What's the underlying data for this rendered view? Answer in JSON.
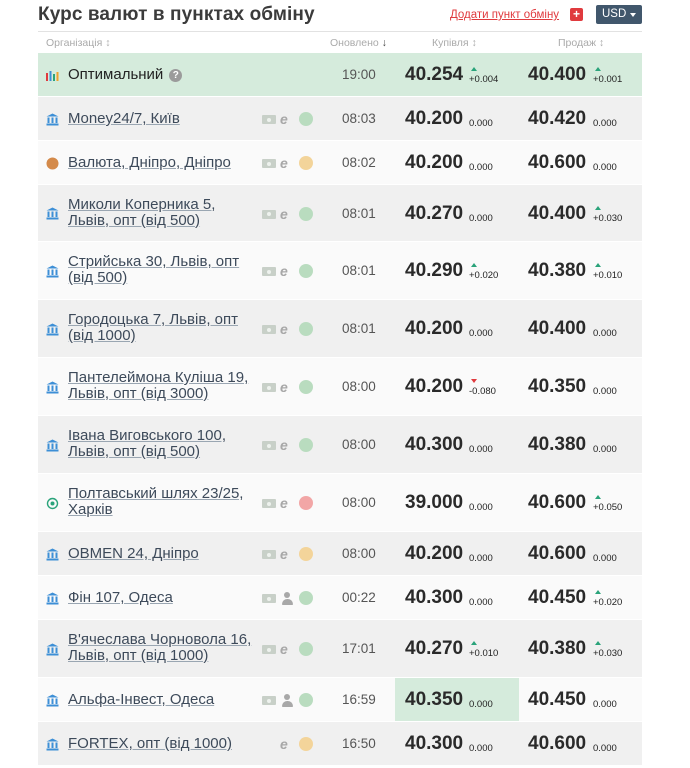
{
  "header": {
    "title": "Курс валют в пунктах обміну",
    "add_label": "Додати пункт обміну",
    "add_plus": "+",
    "currency": "USD"
  },
  "columns": {
    "org": "Організація",
    "org_arrow": "↕",
    "updated": "Оновлено",
    "updated_arrow": "↓",
    "buy": "Купівля",
    "buy_arrow": "↕",
    "sell": "Продаж",
    "sell_arrow": "↕"
  },
  "colors": {
    "status_green": "#b9dcbf",
    "status_yellow": "#f3d49a",
    "status_red": "#f2a6a6",
    "bank_icon": "#3d8fd6",
    "optimal_bg": "#d5ebdc"
  },
  "rows": [
    {
      "name": "Оптимальний",
      "icon": "chart-icon",
      "type": "optimal",
      "help": "?",
      "time": "19:00",
      "buy": "40.254",
      "buy_delta": "+0.004",
      "buy_dir": "up",
      "sell": "40.400",
      "sell_delta": "+0.001",
      "sell_dir": "up"
    },
    {
      "name": "Money24/7, Київ",
      "icon": "bank-icon",
      "cash": true,
      "feature": "card",
      "status": "green",
      "time": "08:03",
      "buy": "40.200",
      "buy_delta": "0.000",
      "buy_dir": "none",
      "sell": "40.420",
      "sell_delta": "0.000",
      "sell_dir": "none"
    },
    {
      "name": "Валюта, Дніпро, Дніпро",
      "icon": "circle-icon",
      "cash": true,
      "feature": "card",
      "status": "yellow",
      "time": "08:02",
      "buy": "40.200",
      "buy_delta": "0.000",
      "buy_dir": "none",
      "sell": "40.600",
      "sell_delta": "0.000",
      "sell_dir": "none"
    },
    {
      "name": "Миколи Коперника 5, Львів, опт (від 500)",
      "icon": "bank-icon",
      "cash": true,
      "feature": "card",
      "status": "green",
      "time": "08:01",
      "buy": "40.270",
      "buy_delta": "0.000",
      "buy_dir": "none",
      "sell": "40.400",
      "sell_delta": "+0.030",
      "sell_dir": "up"
    },
    {
      "name": "Стрийська 30, Львів, опт (від 500)",
      "icon": "bank-icon",
      "cash": true,
      "feature": "card",
      "status": "green",
      "time": "08:01",
      "buy": "40.290",
      "buy_delta": "+0.020",
      "buy_dir": "up",
      "sell": "40.380",
      "sell_delta": "+0.010",
      "sell_dir": "up"
    },
    {
      "name": "Городоцька 7, Львів, опт (від 1000)",
      "icon": "bank-icon",
      "cash": true,
      "feature": "card",
      "status": "green",
      "time": "08:01",
      "buy": "40.200",
      "buy_delta": "0.000",
      "buy_dir": "none",
      "sell": "40.400",
      "sell_delta": "0.000",
      "sell_dir": "none"
    },
    {
      "name": "Пантелеймона Куліша 19, Львів, опт (від 3000)",
      "icon": "bank-icon",
      "cash": true,
      "feature": "card",
      "status": "green",
      "time": "08:00",
      "buy": "40.200",
      "buy_delta": "-0.080",
      "buy_dir": "down",
      "sell": "40.350",
      "sell_delta": "0.000",
      "sell_dir": "none"
    },
    {
      "name": "Івана Виговського 100, Львів, опт (від 500)",
      "icon": "bank-icon",
      "cash": true,
      "feature": "card",
      "status": "green",
      "time": "08:00",
      "buy": "40.300",
      "buy_delta": "0.000",
      "buy_dir": "none",
      "sell": "40.380",
      "sell_delta": "0.000",
      "sell_dir": "none"
    },
    {
      "name": "Полтавський шлях 23/25, Харків",
      "icon": "ring-icon",
      "cash": true,
      "feature": "card",
      "status": "red",
      "time": "08:00",
      "buy": "39.000",
      "buy_delta": "0.000",
      "buy_dir": "none",
      "sell": "40.600",
      "sell_delta": "+0.050",
      "sell_dir": "up"
    },
    {
      "name": "OBMEN 24, Дніпро",
      "icon": "bank-icon",
      "cash": true,
      "feature": "card",
      "status": "yellow",
      "time": "08:00",
      "buy": "40.200",
      "buy_delta": "0.000",
      "buy_dir": "none",
      "sell": "40.600",
      "sell_delta": "0.000",
      "sell_dir": "none"
    },
    {
      "name": "Фін 107, Одеса",
      "icon": "bank-icon",
      "cash": true,
      "feature": "person",
      "status": "green",
      "time": "00:22",
      "buy": "40.300",
      "buy_delta": "0.000",
      "buy_dir": "none",
      "sell": "40.450",
      "sell_delta": "+0.020",
      "sell_dir": "up"
    },
    {
      "name": "В'ячеслава Чорновола 16, Львів, опт (від 1000)",
      "icon": "bank-icon",
      "cash": true,
      "feature": "card",
      "status": "green",
      "time": "17:01",
      "buy": "40.270",
      "buy_delta": "+0.010",
      "buy_dir": "up",
      "sell": "40.380",
      "sell_delta": "+0.030",
      "sell_dir": "up"
    },
    {
      "name": "Альфа-Інвест, Одеса",
      "icon": "bank-icon",
      "cash": true,
      "feature": "person",
      "status": "green",
      "time": "16:59",
      "buy": "40.350",
      "buy_delta": "0.000",
      "buy_dir": "none",
      "sell": "40.450",
      "sell_delta": "0.000",
      "sell_dir": "none",
      "best_buy": true
    },
    {
      "name": "FORTEX, опт (від 1000)",
      "icon": "bank-icon",
      "cash": false,
      "feature": "card",
      "status": "yellow",
      "time": "16:50",
      "buy": "40.300",
      "buy_delta": "0.000",
      "buy_dir": "none",
      "sell": "40.600",
      "sell_delta": "0.000",
      "sell_dir": "none"
    }
  ]
}
